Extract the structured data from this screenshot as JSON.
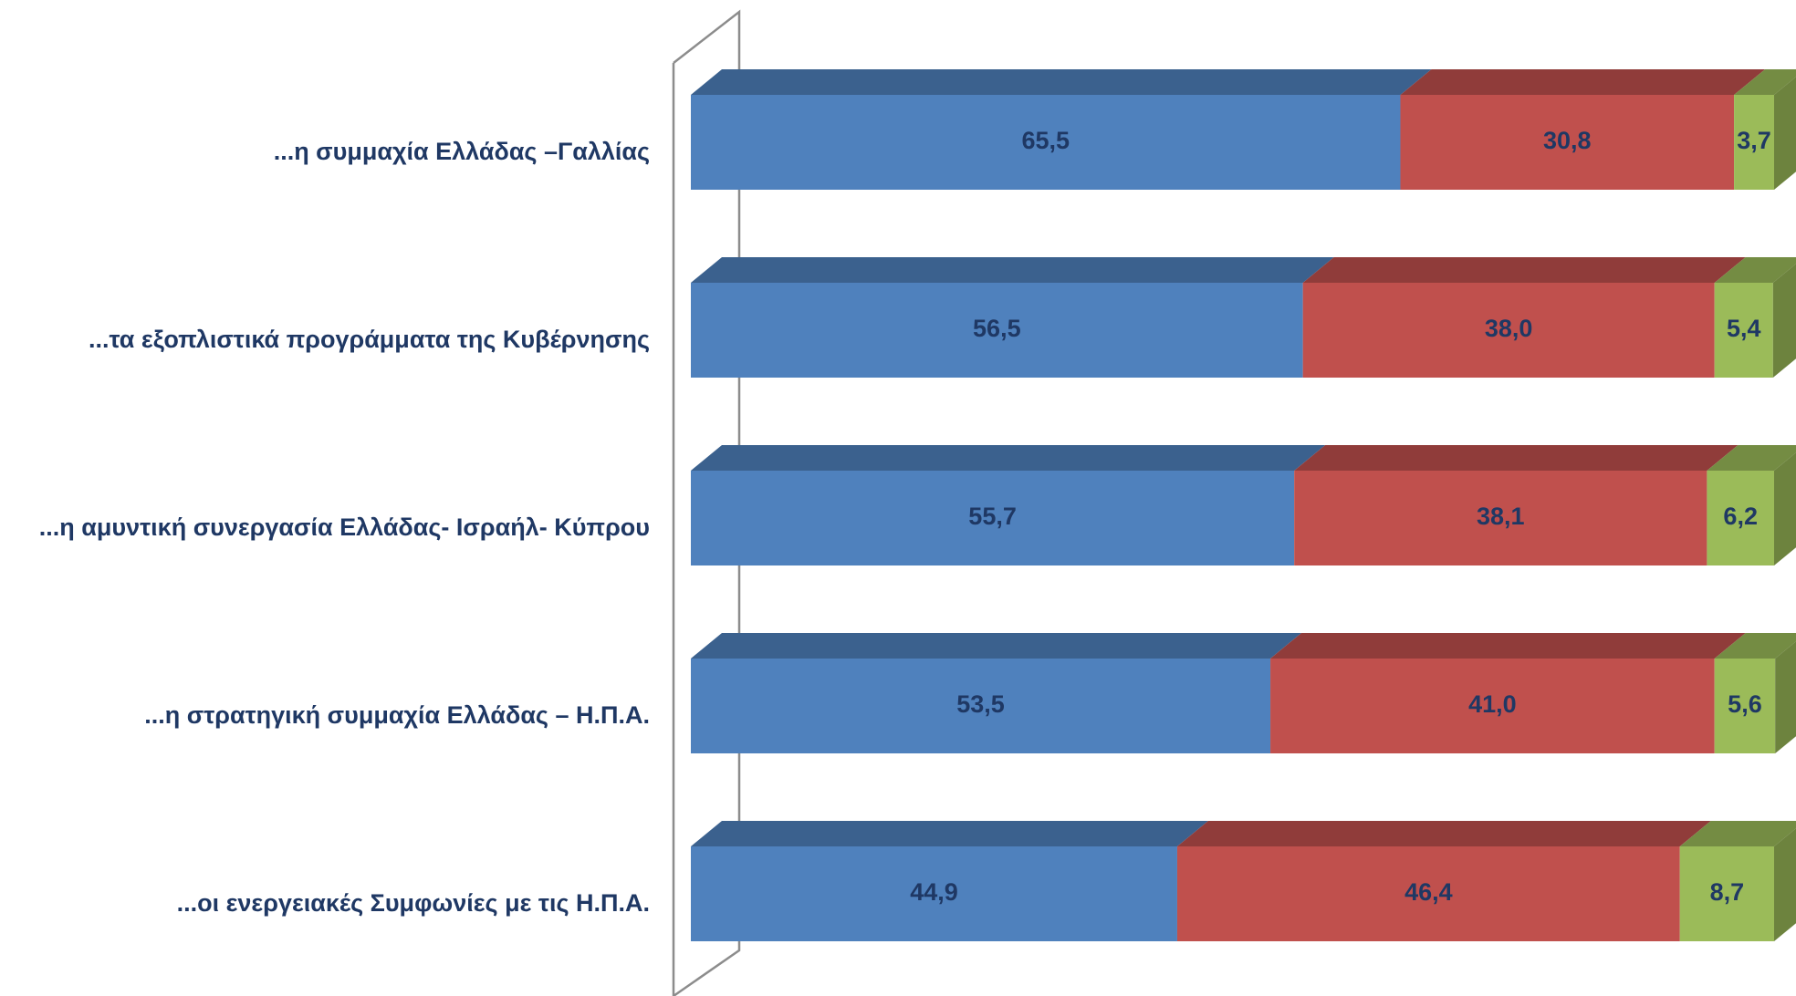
{
  "chart_data": {
    "type": "bar3d_stacked_horizontal",
    "categories": [
      "...η συμμαχία Ελλάδας –Γαλλίας",
      "...τα εξοπλιστικά προγράμματα της Κυβέρνησης",
      "...η αμυντική συνεργασία Ελλάδας- Ισραήλ- Κύπρου",
      "...η στρατηγική συμμαχία Ελλάδας – Η.Π.Α.",
      "...οι ενεργειακές Συμφωνίες με τις Η.Π.Α."
    ],
    "series": [
      {
        "color": "#4f81bd",
        "values": [
          65.5,
          56.5,
          55.7,
          53.5,
          44.9
        ],
        "value_labels": [
          "65,5",
          "56,5",
          "55,7",
          "53,5",
          "44,9"
        ]
      },
      {
        "color": "#c0504d",
        "values": [
          30.8,
          38.0,
          38.1,
          41.0,
          46.4
        ],
        "value_labels": [
          "30,8",
          "38,0",
          "38,1",
          "41,0",
          "46,4"
        ]
      },
      {
        "color": "#9bbb59",
        "values": [
          3.7,
          5.4,
          6.2,
          5.6,
          8.7
        ],
        "value_labels": [
          "3,7",
          "5,4",
          "6,2",
          "5,6",
          "8,7"
        ]
      }
    ],
    "xlim": [
      0,
      100
    ]
  }
}
